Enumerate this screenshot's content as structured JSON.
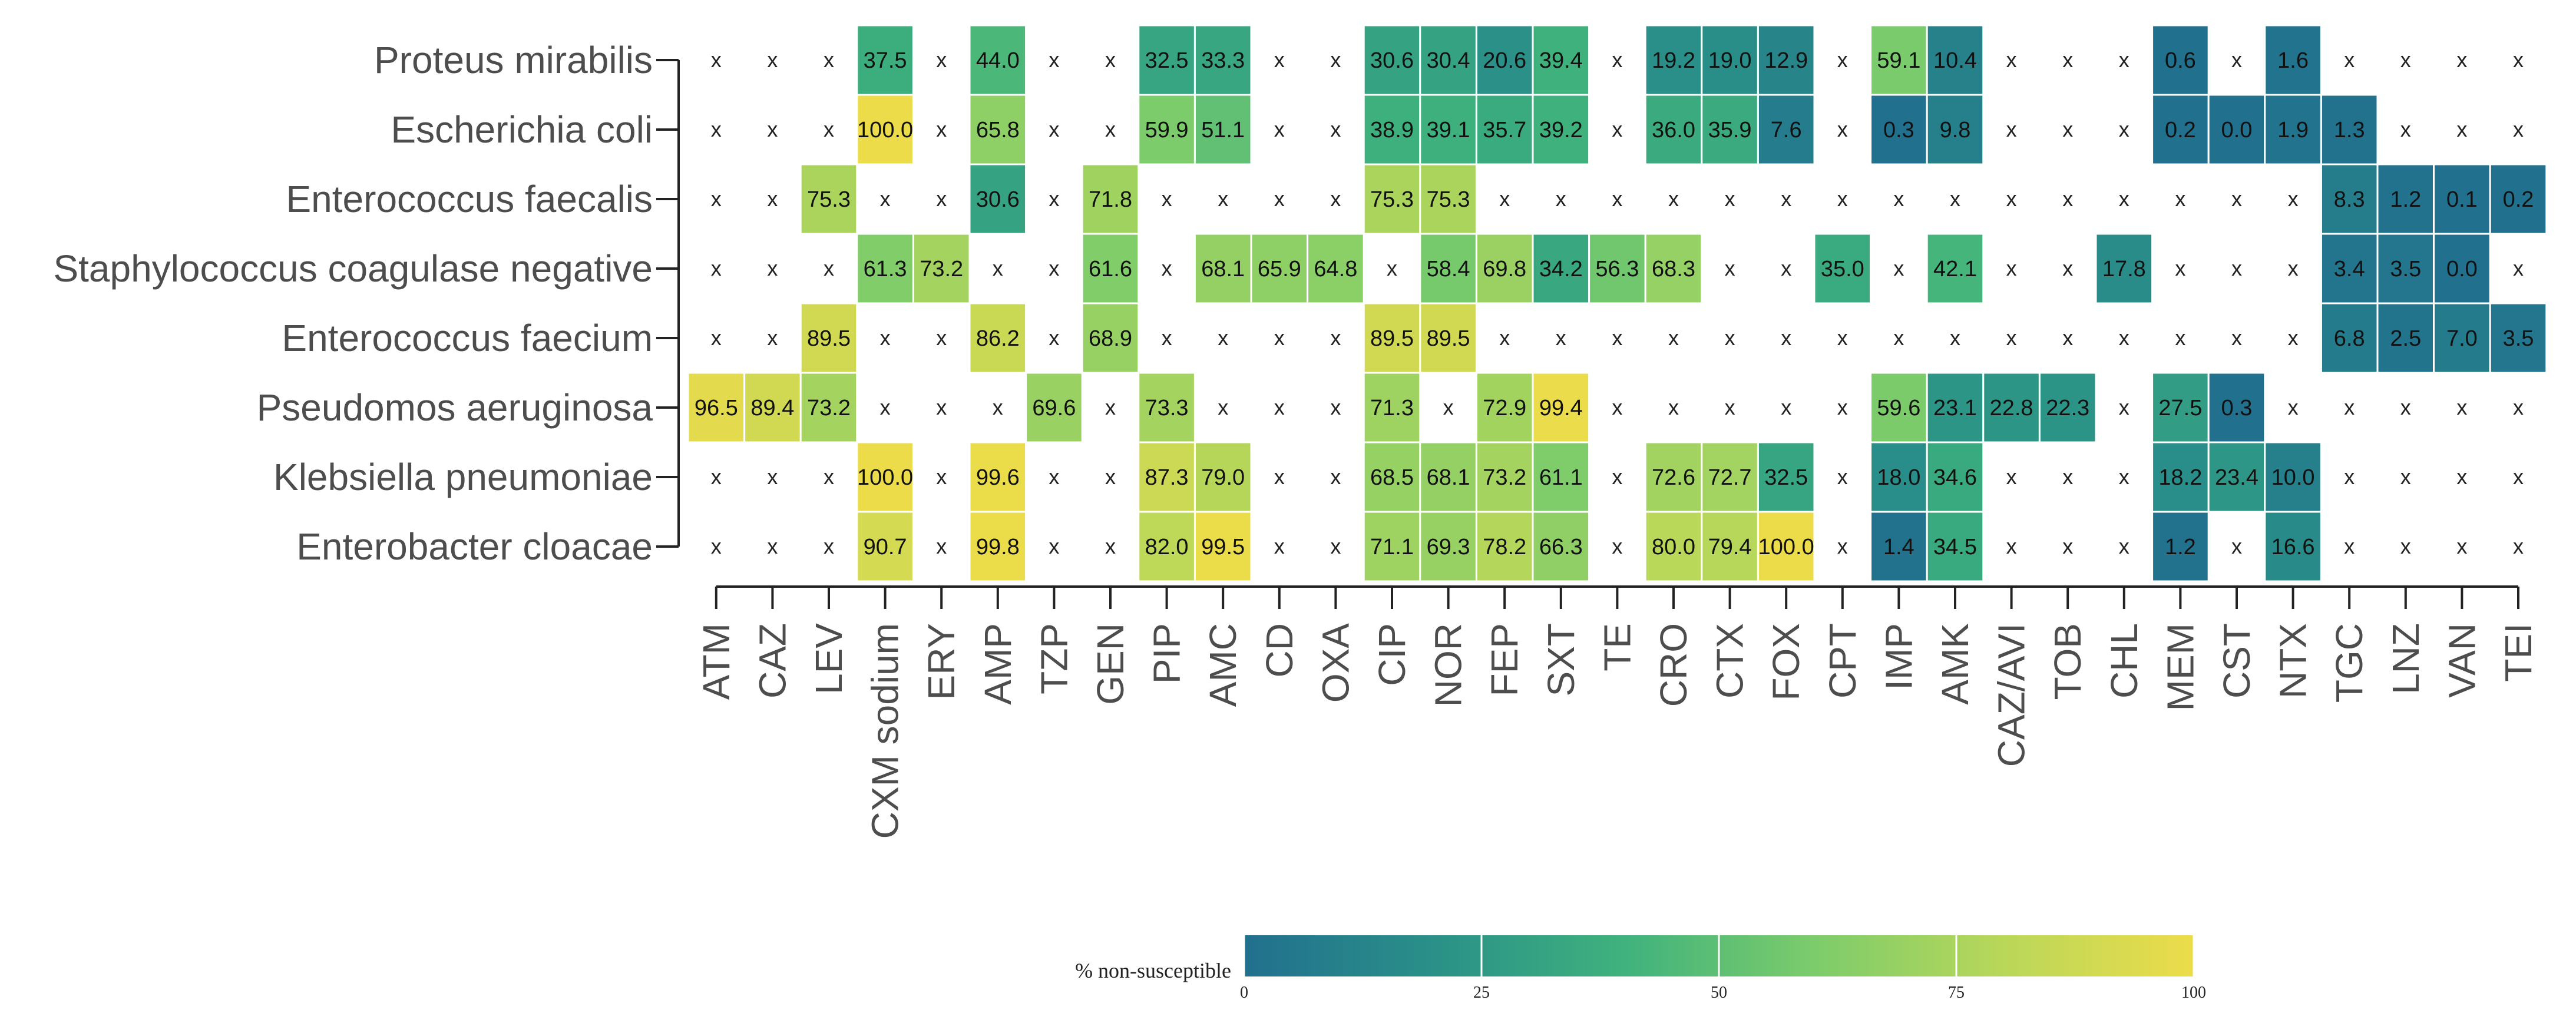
{
  "chart_data": {
    "type": "heatmap",
    "title": "",
    "xlabel": "",
    "ylabel": "",
    "na_symbol": "x",
    "rows": [
      "Proteus mirabilis",
      "Escherichia coli",
      "Enterococcus faecalis",
      "Staphylococcus coagulase negative",
      "Enterococcus faecium",
      "Pseudomos aeruginosa",
      "Klebsiella pneumoniae",
      "Enterobacter cloacae"
    ],
    "columns": [
      "ATM",
      "CAZ",
      "LEV",
      "CXM sodium",
      "ERY",
      "AMP",
      "TZP",
      "GEN",
      "PIP",
      "AMC",
      "CD",
      "OXA",
      "CIP",
      "NOR",
      "FEP",
      "SXT",
      "TE",
      "CRO",
      "CTX",
      "FOX",
      "CPT",
      "IMP",
      "AMK",
      "CAZ/AVI",
      "TOB",
      "CHL",
      "MEM",
      "CST",
      "NTX",
      "TGC",
      "LNZ",
      "VAN",
      "TEI"
    ],
    "values": [
      [
        null,
        null,
        null,
        "37.5",
        null,
        "44.0",
        null,
        null,
        "32.5",
        "33.3",
        null,
        null,
        "30.6",
        "30.4",
        "20.6",
        "39.4",
        null,
        "19.2",
        "19.0",
        "12.9",
        null,
        "59.1",
        "10.4",
        null,
        null,
        null,
        "0.6",
        null,
        "1.6",
        null,
        null,
        null,
        null
      ],
      [
        null,
        null,
        null,
        "100.0",
        null,
        "65.8",
        null,
        null,
        "59.9",
        "51.1",
        null,
        null,
        "38.9",
        "39.1",
        "35.7",
        "39.2",
        null,
        "36.0",
        "35.9",
        "7.6",
        null,
        "0.3",
        "9.8",
        null,
        null,
        null,
        "0.2",
        "0.0",
        "1.9",
        "1.3",
        null,
        null,
        null
      ],
      [
        null,
        null,
        "75.3",
        null,
        null,
        "30.6",
        null,
        "71.8",
        null,
        null,
        null,
        null,
        "75.3",
        "75.3",
        null,
        null,
        null,
        null,
        null,
        null,
        null,
        null,
        null,
        null,
        null,
        null,
        null,
        null,
        null,
        "8.3",
        "1.2",
        "0.1",
        "0.2"
      ],
      [
        null,
        null,
        null,
        "61.3",
        "73.2",
        null,
        null,
        "61.6",
        null,
        "68.1",
        "65.9",
        "64.8",
        null,
        "58.4",
        "69.8",
        "34.2",
        "56.3",
        "68.3",
        null,
        null,
        "35.0",
        null,
        "42.1",
        null,
        null,
        "17.8",
        null,
        null,
        null,
        "3.4",
        "3.5",
        "0.0",
        null
      ],
      [
        null,
        null,
        "89.5",
        null,
        null,
        "86.2",
        null,
        "68.9",
        null,
        null,
        null,
        null,
        "89.5",
        "89.5",
        null,
        null,
        null,
        null,
        null,
        null,
        null,
        null,
        null,
        null,
        null,
        null,
        null,
        null,
        null,
        "6.8",
        "2.5",
        "7.0",
        "3.5"
      ],
      [
        "96.5",
        "89.4",
        "73.2",
        null,
        null,
        null,
        "69.6",
        null,
        "73.3",
        null,
        null,
        null,
        "71.3",
        null,
        "72.9",
        "99.4",
        null,
        null,
        null,
        null,
        null,
        "59.6",
        "23.1",
        "22.8",
        "22.3",
        null,
        "27.5",
        "0.3",
        null,
        null,
        null,
        null,
        null
      ],
      [
        null,
        null,
        null,
        "100.0",
        null,
        "99.6",
        null,
        null,
        "87.3",
        "79.0",
        null,
        null,
        "68.5",
        "68.1",
        "73.2",
        "61.1",
        null,
        "72.6",
        "72.7",
        "32.5",
        null,
        "18.0",
        "34.6",
        null,
        null,
        null,
        "18.2",
        "23.4",
        "10.0",
        null,
        null,
        null,
        null
      ],
      [
        null,
        null,
        null,
        "90.7",
        null,
        "99.8",
        null,
        null,
        "82.0",
        "99.5",
        null,
        null,
        "71.1",
        "69.3",
        "78.2",
        "66.3",
        null,
        "80.0",
        "79.4",
        "100.0",
        null,
        "1.4",
        "34.5",
        null,
        null,
        null,
        "1.2",
        null,
        "16.6",
        null,
        null,
        null,
        null
      ]
    ],
    "legend": {
      "title": "% non-susceptible",
      "ticks": [
        "0",
        "25",
        "50",
        "75",
        "100"
      ],
      "range": [
        0,
        100
      ],
      "placement": "bottom-center"
    },
    "colorscale": [
      "#21708e",
      "#2a9088",
      "#3fb27d",
      "#7ccc6b",
      "#b9d759",
      "#ecdc4a"
    ]
  }
}
